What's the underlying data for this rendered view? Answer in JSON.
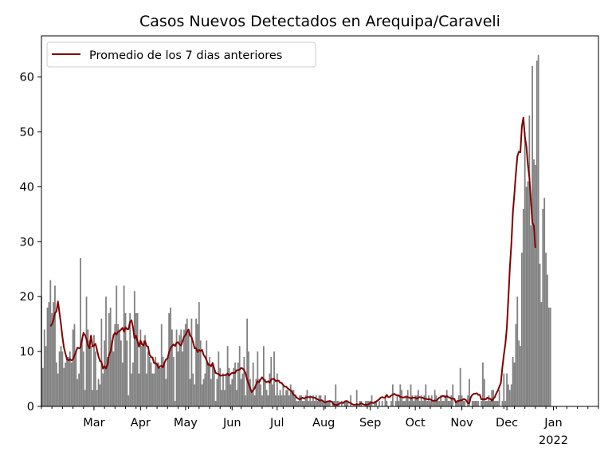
{
  "chart_data": {
    "type": "bar",
    "title": "Casos Nuevos Detectados en Arequipa/Caraveli",
    "xlabel": "",
    "ylabel": "",
    "x_range": [
      "2021-01-25",
      "2022-01-31"
    ],
    "ylim": [
      0,
      67.5
    ],
    "y_ticks": [
      0,
      10,
      20,
      30,
      40,
      50,
      60
    ],
    "x_ticks": [
      {
        "date": "2021-03-01",
        "label": "Mar"
      },
      {
        "date": "2021-04-01",
        "label": "Apr"
      },
      {
        "date": "2021-05-01",
        "label": "May"
      },
      {
        "date": "2021-06-01",
        "label": "Jun"
      },
      {
        "date": "2021-07-01",
        "label": "Jul"
      },
      {
        "date": "2021-08-01",
        "label": "Aug"
      },
      {
        "date": "2021-09-01",
        "label": "Sep"
      },
      {
        "date": "2021-10-01",
        "label": "Oct"
      },
      {
        "date": "2021-11-01",
        "label": "Nov"
      },
      {
        "date": "2021-12-01",
        "label": "Dec"
      },
      {
        "date": "2022-01-01",
        "label": "Jan",
        "sublabel": "2022"
      }
    ],
    "grid": false,
    "legend_position": "top-left",
    "colors": {
      "bars": "#808080",
      "line": "#800000"
    },
    "series": [
      {
        "kind": "bar",
        "start_date": "2021-01-25",
        "values": [
          20,
          7,
          14,
          11,
          18,
          19,
          23,
          17,
          19,
          22,
          8,
          6,
          10,
          11,
          10,
          7,
          8,
          9,
          9,
          10,
          8,
          14,
          15,
          10,
          5,
          6,
          27,
          12,
          10,
          3,
          20,
          14,
          12,
          11,
          3,
          13,
          10,
          3,
          5,
          4,
          16,
          6,
          12,
          20,
          9,
          17,
          18,
          12,
          10,
          15,
          22,
          15,
          14,
          12,
          8,
          22,
          17,
          12,
          2,
          17,
          6,
          8,
          21,
          17,
          17,
          6,
          14,
          11,
          12,
          13,
          6,
          10,
          9,
          8,
          6,
          6,
          9,
          8,
          8,
          7,
          15,
          9,
          8,
          5,
          9,
          17,
          18,
          14,
          9,
          1,
          14,
          10,
          13,
          14,
          10,
          14,
          15,
          16,
          14,
          5,
          16,
          6,
          4,
          16,
          15,
          19,
          12,
          4,
          5,
          6,
          12,
          8,
          9,
          5,
          8,
          7,
          1,
          5,
          10,
          7,
          3,
          6,
          3,
          6,
          11,
          7,
          4,
          5,
          7,
          8,
          3,
          8,
          11,
          5,
          6,
          9,
          2,
          16,
          10,
          5,
          3,
          8,
          2,
          5,
          10,
          5,
          4,
          2,
          11,
          5,
          3,
          2,
          6,
          9,
          4,
          10,
          2,
          6,
          2,
          3,
          2,
          4,
          2,
          3,
          3,
          2,
          4,
          3,
          3,
          2,
          1,
          1,
          2,
          2,
          1,
          1,
          2,
          3,
          1,
          2,
          1,
          2,
          1,
          2,
          1,
          2,
          2,
          1,
          1,
          2,
          1,
          1,
          1,
          0,
          1,
          1,
          4,
          1,
          1,
          0,
          1,
          0,
          1,
          1,
          1,
          0,
          2,
          0,
          0,
          0,
          3,
          0,
          1,
          1,
          0,
          0,
          1,
          1,
          1,
          1,
          2,
          0,
          1,
          1,
          0,
          1,
          0,
          1,
          0,
          2,
          1,
          0,
          0,
          1,
          4,
          0,
          1,
          2,
          1,
          4,
          3,
          1,
          1,
          2,
          3,
          1,
          4,
          2,
          1,
          2,
          2,
          3,
          1,
          2,
          1,
          2,
          4,
          1,
          2,
          1,
          2,
          1,
          3,
          2,
          1,
          1,
          2,
          1,
          1,
          2,
          3,
          1,
          1,
          2,
          4,
          0,
          1,
          1,
          2,
          7,
          2,
          1,
          1,
          0,
          2,
          5,
          0,
          1,
          1,
          1,
          1,
          1,
          0,
          1,
          8,
          5,
          1,
          1,
          2,
          1,
          3,
          3,
          1,
          1,
          1,
          3,
          0,
          1,
          6,
          1,
          6,
          4,
          3,
          4,
          9,
          8,
          15,
          20,
          12,
          11,
          28,
          36,
          50,
          40,
          41,
          53,
          33,
          62,
          45,
          44,
          63,
          64,
          26,
          19,
          36,
          38,
          28,
          24,
          18,
          18
        ]
      },
      {
        "kind": "line",
        "name": "Promedio de los 7 dias anteriores",
        "start_date": "2021-01-31",
        "values": [
          14.6,
          15.0,
          15.7,
          17.0,
          17.3,
          19.1,
          17.1,
          15.0,
          12.6,
          10.7,
          9.6,
          8.6,
          8.4,
          8.6,
          8.4,
          8.6,
          9.3,
          10.0,
          10.7,
          10.6,
          10.7,
          12.1,
          13.4,
          13.0,
          12.3,
          11.1,
          10.6,
          12.9,
          10.9,
          11.1,
          11.4,
          10.3,
          9.1,
          8.3,
          8.1,
          6.9,
          7.3,
          6.9,
          7.6,
          9.3,
          10.0,
          11.4,
          13.0,
          13.4,
          13.1,
          13.6,
          13.7,
          14.0,
          14.3,
          13.6,
          14.4,
          14.1,
          14.1,
          15.4,
          15.7,
          14.4,
          12.4,
          12.9,
          11.9,
          10.9,
          12.0,
          11.3,
          11.1,
          11.9,
          11.0,
          10.9,
          9.4,
          9.0,
          8.9,
          7.9,
          7.9,
          7.6,
          7.0,
          7.3,
          7.4,
          7.1,
          8.0,
          8.6,
          8.7,
          9.9,
          10.6,
          11.0,
          11.3,
          11.0,
          11.6,
          11.7,
          11.3,
          11.1,
          11.9,
          12.7,
          13.0,
          13.6,
          14.0,
          12.9,
          12.6,
          11.7,
          10.6,
          10.6,
          9.9,
          10.3,
          10.1,
          10.3,
          9.4,
          9.0,
          8.4,
          7.6,
          7.6,
          7.3,
          7.9,
          7.0,
          6.1,
          6.0,
          5.9,
          5.6,
          5.6,
          5.7,
          5.7,
          5.7,
          6.0,
          5.6,
          5.9,
          6.1,
          6.1,
          6.1,
          6.6,
          6.6,
          6.7,
          7.0,
          6.9,
          6.6,
          6.0,
          4.9,
          4.1,
          3.4,
          2.6,
          2.9,
          3.3,
          4.0,
          4.6,
          4.4,
          4.9,
          5.3,
          4.9,
          4.6,
          4.4,
          4.6,
          4.3,
          4.9,
          5.0,
          5.0,
          4.6,
          4.7,
          4.7,
          4.3,
          4.3,
          3.9,
          3.6,
          3.6,
          3.3,
          3.1,
          2.9,
          2.6,
          2.1,
          2.0,
          1.6,
          1.4,
          1.3,
          1.4,
          1.6,
          1.4,
          1.6,
          1.7,
          1.7,
          1.7,
          1.7,
          1.6,
          1.6,
          1.4,
          1.3,
          1.1,
          1.1,
          1.1,
          0.9,
          0.7,
          0.9,
          0.9,
          1.0,
          0.9,
          0.6,
          0.3,
          0.3,
          0.3,
          0.4,
          0.6,
          0.7,
          0.6,
          0.9,
          1.0,
          0.9,
          0.7,
          0.6,
          0.4,
          0.3,
          0.3,
          0.4,
          0.3,
          0.4,
          0.6,
          0.4,
          0.3,
          0.3,
          0.3,
          0.4,
          0.6,
          0.7,
          0.6,
          0.7,
          0.9,
          1.1,
          1.3,
          1.6,
          1.7,
          1.6,
          1.6,
          2.1,
          1.7,
          1.7,
          2.0,
          2.1,
          2.3,
          2.1,
          2.0,
          2.0,
          1.7,
          1.7,
          1.6,
          1.7,
          1.7,
          1.7,
          1.6,
          1.4,
          1.6,
          1.6,
          1.6,
          1.4,
          1.6,
          1.7,
          1.6,
          1.6,
          1.4,
          1.4,
          1.3,
          1.3,
          1.3,
          1.1,
          1.0,
          1.1,
          1.0,
          1.3,
          1.6,
          1.7,
          1.9,
          1.9,
          1.7,
          1.9,
          1.7,
          1.6,
          1.4,
          1.4,
          1.4,
          0.7,
          1.0,
          1.0,
          1.1,
          1.1,
          1.3,
          1.3,
          1.1,
          0.6,
          0.6,
          1.7,
          2.1,
          2.3,
          2.3,
          2.4,
          2.1,
          2.1,
          1.3,
          1.3,
          1.3,
          1.3,
          1.6,
          1.4,
          1.4,
          1.0,
          1.4,
          1.7,
          2.4,
          2.9,
          3.6,
          4.3,
          7.1,
          9.4,
          11.4,
          14.4,
          19.7,
          25.3,
          29.6,
          35.3,
          38.7,
          42.4,
          45.6,
          46.4,
          46.3,
          51.0,
          52.6,
          49.1,
          47.4,
          44.0,
          41.7,
          37.4,
          33.4,
          32.9,
          28.9
        ]
      }
    ]
  }
}
